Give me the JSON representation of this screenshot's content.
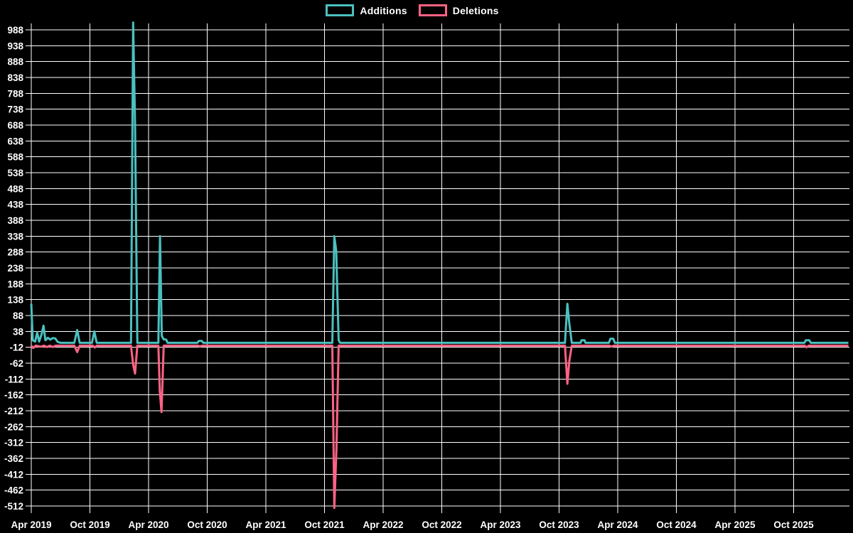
{
  "colors": {
    "background": "#000000",
    "grid": "#ffffff",
    "text": "#ffffff",
    "additions": "#4bc0c0",
    "deletions": "#ff6384"
  },
  "legend": {
    "items": [
      {
        "label": "Additions",
        "color": "#4bc0c0"
      },
      {
        "label": "Deletions",
        "color": "#ff6384"
      }
    ]
  },
  "chart_data": {
    "type": "line",
    "title": "",
    "xlabel": "",
    "ylabel": "",
    "grid": true,
    "legend_position": "top-center",
    "ylim": [
      -512,
      1011
    ],
    "y_tick_step": 50,
    "y_ticks": [
      988,
      938,
      888,
      838,
      788,
      738,
      688,
      638,
      588,
      538,
      488,
      438,
      388,
      338,
      288,
      238,
      188,
      138,
      88,
      38,
      -12,
      -62,
      -112,
      -162,
      -212,
      -262,
      -312,
      -362,
      -412,
      -462,
      -512
    ],
    "x_unit": "months_since_2019-04",
    "x_range_months": [
      0,
      83.6
    ],
    "x_ticks": [
      {
        "label": "Apr 2019",
        "month": 0
      },
      {
        "label": "Oct 2019",
        "month": 6
      },
      {
        "label": "Apr 2020",
        "month": 12
      },
      {
        "label": "Oct 2020",
        "month": 18
      },
      {
        "label": "Apr 2021",
        "month": 24
      },
      {
        "label": "Oct 2021",
        "month": 30
      },
      {
        "label": "Apr 2022",
        "month": 36
      },
      {
        "label": "Oct 2022",
        "month": 42
      },
      {
        "label": "Apr 2023",
        "month": 48
      },
      {
        "label": "Oct 2023",
        "month": 54
      },
      {
        "label": "Apr 2024",
        "month": 60
      },
      {
        "label": "Oct 2024",
        "month": 66
      },
      {
        "label": "Apr 2025",
        "month": 72
      },
      {
        "label": "Oct 2025",
        "month": 78
      }
    ],
    "series": [
      {
        "name": "Additions",
        "color": "#4bc0c0",
        "baseline": 2,
        "points": [
          [
            0,
            125
          ],
          [
            0.15,
            10
          ],
          [
            0.4,
            6
          ],
          [
            0.6,
            35
          ],
          [
            0.8,
            6
          ],
          [
            1.05,
            28
          ],
          [
            1.25,
            56
          ],
          [
            1.45,
            10
          ],
          [
            1.7,
            18
          ],
          [
            1.95,
            12
          ],
          [
            2.2,
            17
          ],
          [
            2.45,
            16
          ],
          [
            2.7,
            5
          ],
          [
            3.0,
            2
          ],
          [
            4.4,
            2
          ],
          [
            4.7,
            42
          ],
          [
            4.95,
            2
          ],
          [
            6.2,
            2
          ],
          [
            6.45,
            38
          ],
          [
            6.7,
            2
          ],
          [
            10.2,
            2
          ],
          [
            10.42,
            1011
          ],
          [
            10.62,
            690
          ],
          [
            10.85,
            2
          ],
          [
            13.0,
            2
          ],
          [
            13.17,
            338
          ],
          [
            13.35,
            24
          ],
          [
            13.55,
            13
          ],
          [
            13.8,
            12
          ],
          [
            13.95,
            2
          ],
          [
            17.0,
            2
          ],
          [
            17.15,
            8
          ],
          [
            17.45,
            8
          ],
          [
            17.6,
            2
          ],
          [
            30.8,
            2
          ],
          [
            31.0,
            338
          ],
          [
            31.2,
            292
          ],
          [
            31.45,
            10
          ],
          [
            31.6,
            2
          ],
          [
            54.6,
            2
          ],
          [
            54.85,
            125
          ],
          [
            55.05,
            63
          ],
          [
            55.3,
            2
          ],
          [
            56.2,
            2
          ],
          [
            56.3,
            10
          ],
          [
            56.6,
            10
          ],
          [
            56.7,
            2
          ],
          [
            59.1,
            2
          ],
          [
            59.25,
            15
          ],
          [
            59.55,
            15
          ],
          [
            59.7,
            2
          ],
          [
            79.1,
            2
          ],
          [
            79.25,
            10
          ],
          [
            79.6,
            10
          ],
          [
            79.75,
            2
          ],
          [
            83.6,
            2
          ]
        ]
      },
      {
        "name": "Deletions",
        "color": "#ff6384",
        "baseline": -7,
        "points": [
          [
            0,
            -7
          ],
          [
            0.2,
            -14
          ],
          [
            0.45,
            -7
          ],
          [
            1.0,
            -10
          ],
          [
            1.3,
            -7
          ],
          [
            1.6,
            -11
          ],
          [
            1.9,
            -7
          ],
          [
            2.2,
            -11
          ],
          [
            2.5,
            -7
          ],
          [
            3.0,
            -7
          ],
          [
            4.4,
            -7
          ],
          [
            4.7,
            -27
          ],
          [
            4.95,
            -7
          ],
          [
            6.3,
            -7
          ],
          [
            6.5,
            -13
          ],
          [
            6.7,
            -7
          ],
          [
            10.2,
            -7
          ],
          [
            10.42,
            -67
          ],
          [
            10.62,
            -95
          ],
          [
            10.85,
            -7
          ],
          [
            13.0,
            -7
          ],
          [
            13.15,
            -150
          ],
          [
            13.32,
            -216
          ],
          [
            13.55,
            -7
          ],
          [
            17.05,
            -7
          ],
          [
            17.25,
            -9
          ],
          [
            17.5,
            -7
          ],
          [
            30.8,
            -7
          ],
          [
            31.0,
            -518
          ],
          [
            31.22,
            -333
          ],
          [
            31.45,
            -7
          ],
          [
            54.6,
            -7
          ],
          [
            54.85,
            -127
          ],
          [
            55.05,
            -55
          ],
          [
            55.3,
            -7
          ],
          [
            59.15,
            -7
          ],
          [
            59.35,
            -10
          ],
          [
            59.6,
            -7
          ],
          [
            79.15,
            -7
          ],
          [
            79.3,
            -12
          ],
          [
            79.55,
            -7
          ],
          [
            83.6,
            -7
          ]
        ]
      }
    ]
  }
}
